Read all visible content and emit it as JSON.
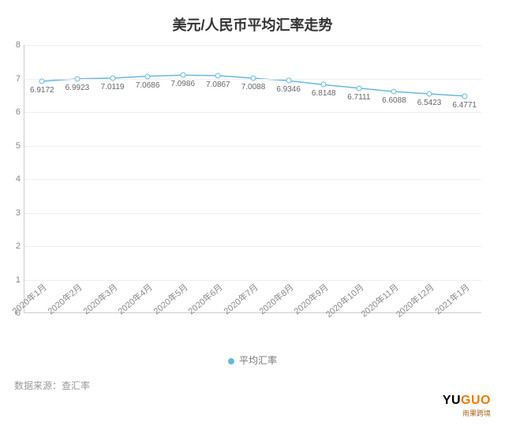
{
  "title": "美元/人民币平均汇率走势",
  "chart": {
    "type": "line",
    "line_color": "#69b8e0",
    "marker_border": "#69b8e0",
    "marker_fill": "#ffffff",
    "marker_size": 7,
    "line_width": 1.5,
    "background_color": "#ffffff",
    "grid_color": "#eeeeee",
    "axis_color": "#cccccc",
    "title_fontsize": 18,
    "label_fontsize": 11,
    "value_label_fontsize": 10,
    "value_label_color": "#666666",
    "ylim": [
      0,
      8
    ],
    "ytick_step": 1,
    "categories": [
      "2020年1月",
      "2020年2月",
      "2020年3月",
      "2020年4月",
      "2020年5月",
      "2020年6月",
      "2020年7月",
      "2020年8月",
      "2020年9月",
      "2020年10月",
      "2020年11月",
      "2020年12月",
      "2021年1月"
    ],
    "values": [
      6.9172,
      6.9923,
      7.0119,
      7.0686,
      7.0986,
      7.0867,
      7.0088,
      6.9346,
      6.8148,
      6.7111,
      6.6088,
      6.5423,
      6.4771
    ],
    "x_label_rotation": -40
  },
  "legend": {
    "label": "平均汇率",
    "dot_color": "#69b8e0"
  },
  "source": {
    "prefix": "数据来源：",
    "name": "查汇率"
  },
  "brand": {
    "main": "YUGUO",
    "main_colors": [
      "#000000",
      "#ee7a00"
    ],
    "sub": "雨果跨境"
  }
}
